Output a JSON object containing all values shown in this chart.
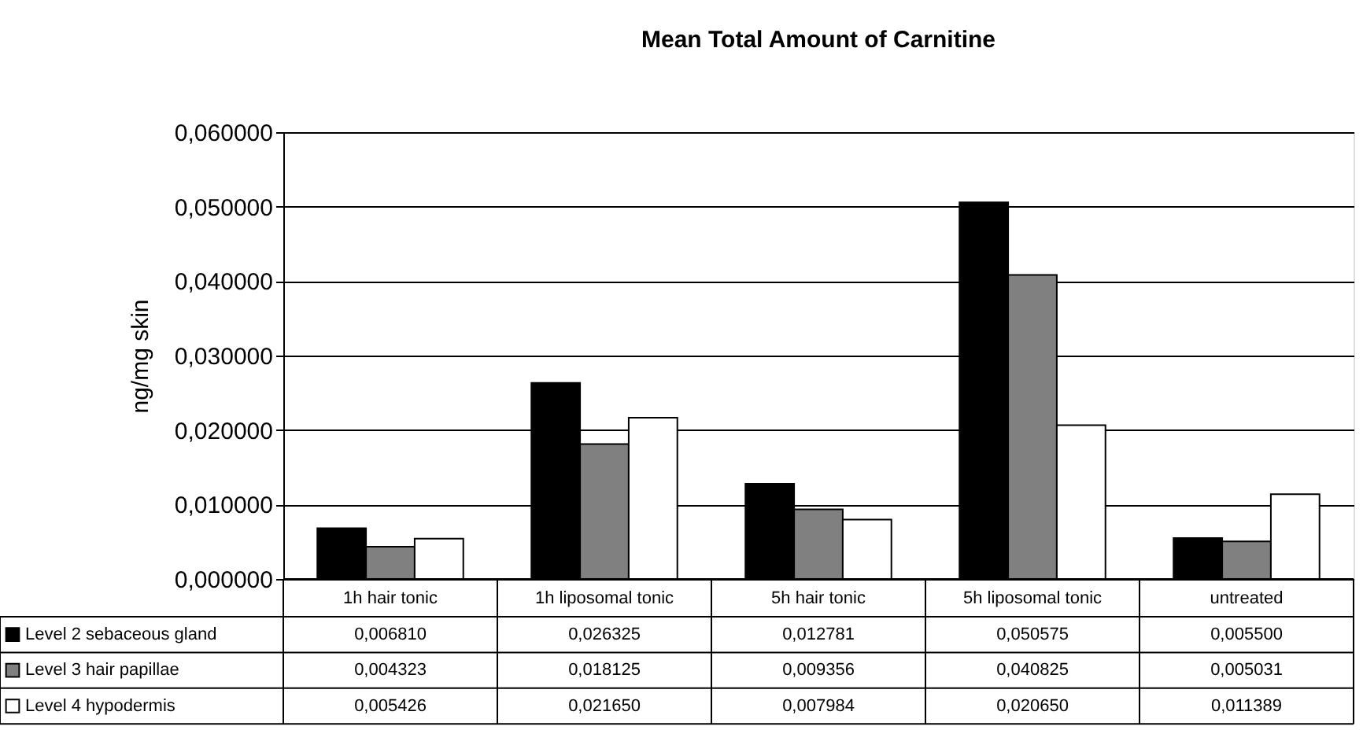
{
  "chart_data": {
    "type": "bar",
    "title": "Mean Total Amount of Carnitine",
    "ylabel": "ng/mg skin",
    "categories": [
      "1h hair tonic",
      "1h liposomal tonic",
      "5h hair tonic",
      "5h liposomal tonic",
      "untreated"
    ],
    "series": [
      {
        "name": "Level 2 sebaceous gland",
        "color": "#000000",
        "values": [
          0.00681,
          0.026325,
          0.012781,
          0.050575,
          0.0055
        ],
        "value_labels": [
          "0,006810",
          "0,026325",
          "0,012781",
          "0,050575",
          "0,005500"
        ]
      },
      {
        "name": "Level 3 hair papillae",
        "color": "#808080",
        "values": [
          0.004323,
          0.018125,
          0.009356,
          0.040825,
          0.005031
        ],
        "value_labels": [
          "0,004323",
          "0,018125",
          "0,009356",
          "0,040825",
          "0,005031"
        ]
      },
      {
        "name": "Level 4 hypodermis",
        "color": "#ffffff",
        "values": [
          0.005426,
          0.02165,
          0.007984,
          0.02065,
          0.011389
        ],
        "value_labels": [
          "0,005426",
          "0,021650",
          "0,007984",
          "0,020650",
          "0,011389"
        ]
      }
    ],
    "ylim": [
      0,
      0.06
    ],
    "yticks": [
      {
        "value": 0,
        "label": "0,000000"
      },
      {
        "value": 0.01,
        "label": "0,010000"
      },
      {
        "value": 0.02,
        "label": "0,020000"
      },
      {
        "value": 0.03,
        "label": "0,030000"
      },
      {
        "value": 0.04,
        "label": "0,040000"
      },
      {
        "value": 0.05,
        "label": "0,050000"
      },
      {
        "value": 0.06,
        "label": "0,060000"
      }
    ],
    "grid": "y",
    "legend": "bottom"
  }
}
